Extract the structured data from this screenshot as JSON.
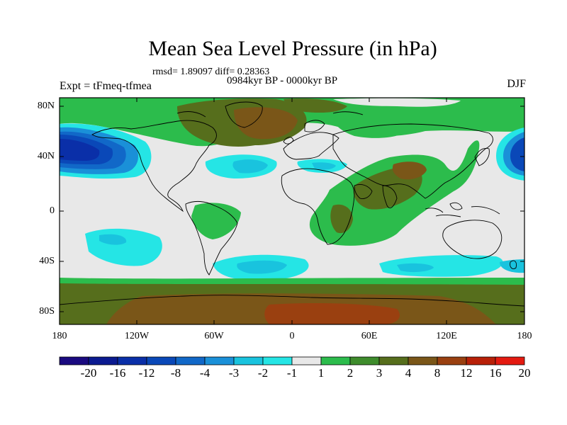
{
  "header": {
    "title": "Mean Sea Level Pressure (in hPa)",
    "stats": "rmsd= 1.89097 diff= 0.28363",
    "period": "0984kyr BP - 0000kyr BP",
    "experiment": "Expt = tFmeq-tfmea",
    "season": "DJF"
  },
  "axes": {
    "lat_ticks": [
      "80N",
      "40N",
      "0",
      "40S",
      "80S"
    ],
    "lon_ticks": [
      "180",
      "120W",
      "60W",
      "0",
      "60E",
      "120E",
      "180"
    ]
  },
  "colorbar": {
    "labels": [
      "-20",
      "-16",
      "-12",
      "-8",
      "-4",
      "-3",
      "-2",
      "-1",
      "1",
      "2",
      "3",
      "4",
      "8",
      "12",
      "16",
      "20"
    ],
    "colors": [
      "#1a0a80",
      "#0b1a90",
      "#0a2fa8",
      "#0a48b8",
      "#1168c8",
      "#1a90d8",
      "#19c3de",
      "#25e5e5",
      "#e8e8e8",
      "#2cbc4c",
      "#3e8c2c",
      "#566e1c",
      "#7a5618",
      "#9a4010",
      "#b82008",
      "#e41a10"
    ]
  },
  "chart_data": {
    "type": "heatmap",
    "title": "Mean Sea Level Pressure (in hPa)",
    "variable": "Mean sea level pressure difference",
    "units": "hPa",
    "x_range": [
      -180,
      180
    ],
    "y_range": [
      -90,
      90
    ],
    "levels": [
      -20,
      -16,
      -12,
      -8,
      -4,
      -3,
      -2,
      -1,
      1,
      2,
      3,
      4,
      8,
      12,
      16,
      20
    ],
    "features": [
      {
        "region": "North Pacific",
        "min_value": -12
      },
      {
        "region": "Eurasian and North American Arctic",
        "max_value": 8
      },
      {
        "region": "Southern Ocean band",
        "value_range": [
          2,
          4
        ]
      },
      {
        "region": "Antarctica",
        "max_value": 8
      },
      {
        "region": "North Atlantic / Mediterranean",
        "min_value": -3
      },
      {
        "region": "South Atlantic 40S",
        "min_value": -3
      },
      {
        "region": "Indian Ocean 40S",
        "min_value": -3
      },
      {
        "region": "Africa / Asia / India",
        "value_range": [
          2,
          8
        ]
      }
    ]
  }
}
